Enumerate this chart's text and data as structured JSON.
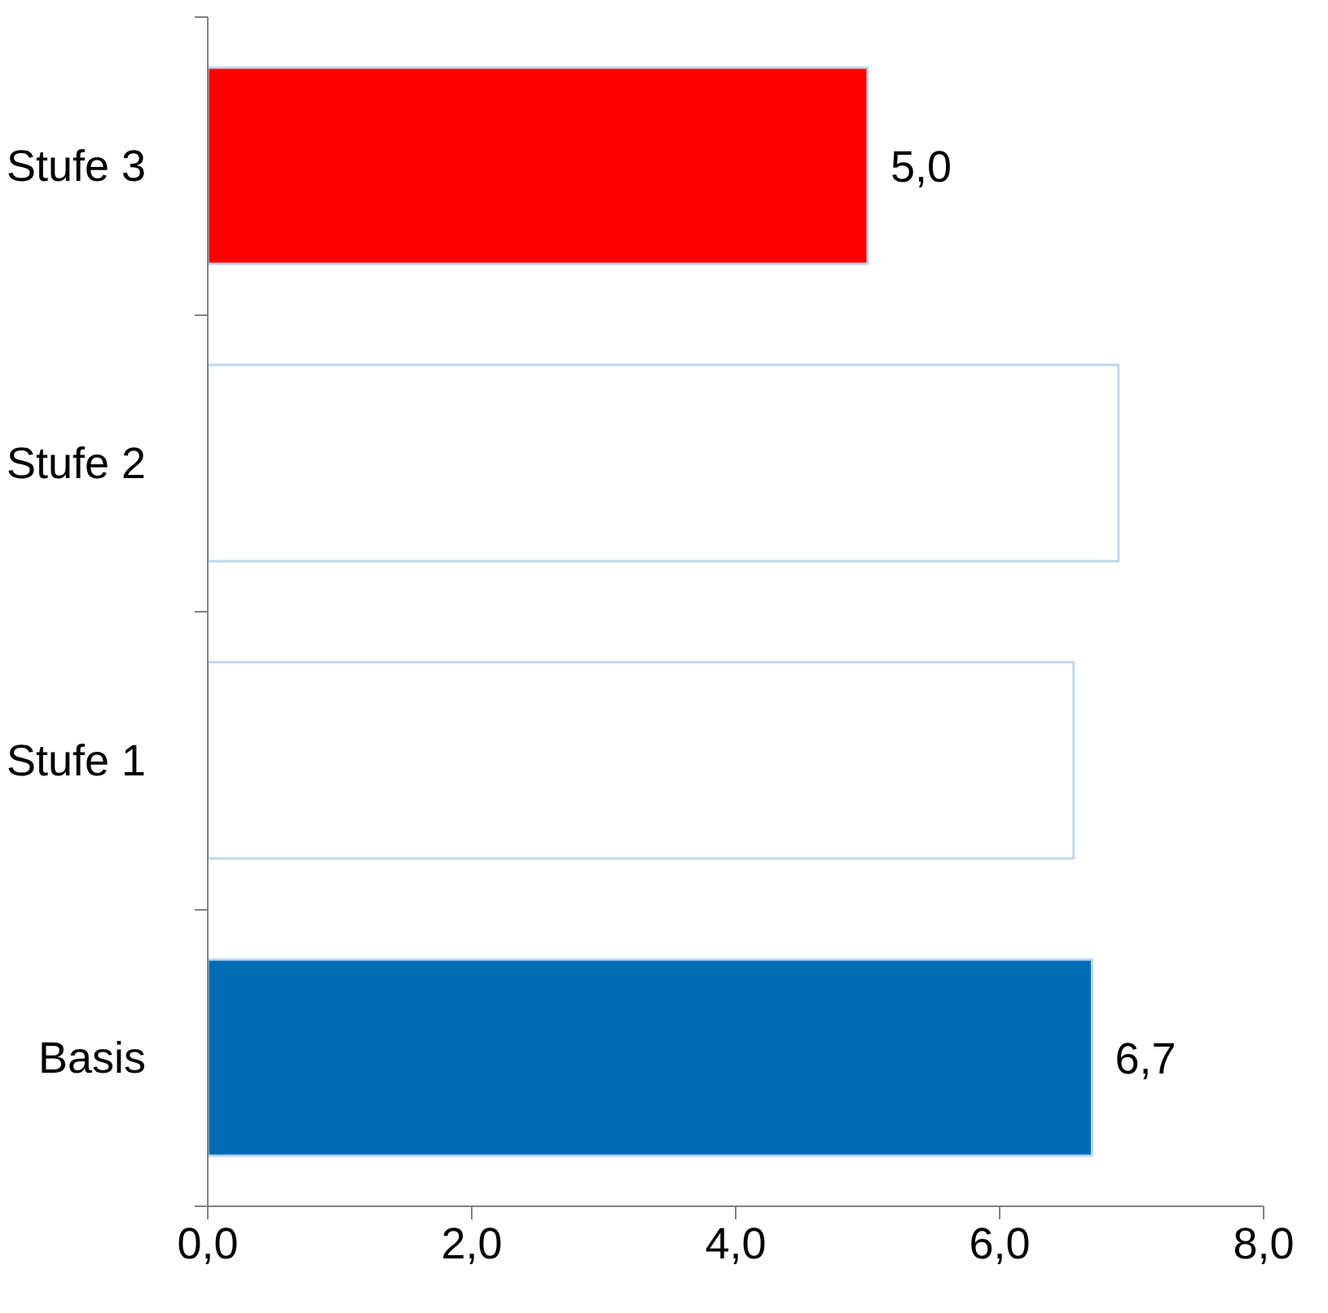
{
  "chart_data": {
    "type": "bar",
    "orientation": "horizontal",
    "categories": [
      "Stufe 3",
      "Stufe 2",
      "Stufe 1",
      "Basis"
    ],
    "values": [
      5.0,
      6.9,
      6.56,
      6.7
    ],
    "colors": [
      "#ff0000",
      "#ffffff",
      "#ffffff",
      "#026bb6"
    ],
    "value_labels": [
      "5,0",
      null,
      null,
      "6,7"
    ],
    "xlim": [
      0,
      8
    ],
    "xticks": [
      {
        "value": 0,
        "label": "0,0"
      },
      {
        "value": 2,
        "label": "2,0"
      },
      {
        "value": 4,
        "label": "4,0"
      },
      {
        "value": 6,
        "label": "6,0"
      },
      {
        "value": 8,
        "label": "8,0"
      }
    ],
    "grid": false
  }
}
